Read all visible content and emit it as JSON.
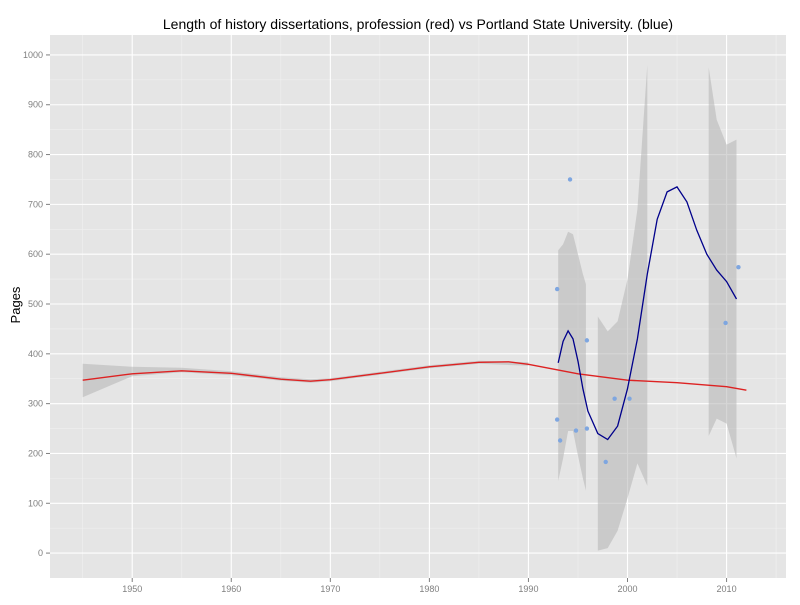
{
  "chart_data": {
    "type": "scatter",
    "title": "Length of history dissertations, profession (red) vs Portland State University. (blue)",
    "xlabel": "",
    "ylabel": "Pages",
    "xlim": [
      1941.7,
      2016.0
    ],
    "ylim": [
      -50,
      1040
    ],
    "x_ticks": [
      1950,
      1960,
      1970,
      1980,
      1990,
      2000,
      2010
    ],
    "y_ticks": [
      0,
      100,
      200,
      300,
      400,
      500,
      600,
      700,
      800,
      900,
      1000
    ],
    "grid": true,
    "background": "#e5e5e5",
    "points": [
      {
        "x": 1992.9,
        "y": 530
      },
      {
        "x": 1992.9,
        "y": 268
      },
      {
        "x": 1993.2,
        "y": 226
      },
      {
        "x": 1994.2,
        "y": 750
      },
      {
        "x": 1994.8,
        "y": 246
      },
      {
        "x": 1995.9,
        "y": 427
      },
      {
        "x": 1995.9,
        "y": 250
      },
      {
        "x": 1997.8,
        "y": 183
      },
      {
        "x": 1998.7,
        "y": 310
      },
      {
        "x": 2000.2,
        "y": 310
      },
      {
        "x": 2009.9,
        "y": 462
      },
      {
        "x": 2011.2,
        "y": 574
      }
    ],
    "series": [
      {
        "color": "#dd2222",
        "line": [
          {
            "x": 1945.0,
            "y": 347
          },
          {
            "x": 1950.0,
            "y": 360
          },
          {
            "x": 1955.0,
            "y": 366
          },
          {
            "x": 1960.0,
            "y": 361
          },
          {
            "x": 1965.0,
            "y": 349
          },
          {
            "x": 1968.0,
            "y": 345
          },
          {
            "x": 1970.0,
            "y": 348
          },
          {
            "x": 1975.0,
            "y": 361
          },
          {
            "x": 1980.0,
            "y": 374
          },
          {
            "x": 1985.0,
            "y": 383
          },
          {
            "x": 1988.0,
            "y": 384
          },
          {
            "x": 1990.0,
            "y": 379
          },
          {
            "x": 1995.0,
            "y": 360
          },
          {
            "x": 2000.0,
            "y": 347
          },
          {
            "x": 2005.0,
            "y": 342
          },
          {
            "x": 2010.0,
            "y": 334
          },
          {
            "x": 2012.0,
            "y": 327
          }
        ],
        "band": [
          {
            "x": 1945.0,
            "lo": 313,
            "hi": 380
          },
          {
            "x": 1950.0,
            "lo": 355,
            "hi": 374
          },
          {
            "x": 1955.0,
            "lo": 363,
            "hi": 372
          },
          {
            "x": 1960.0,
            "lo": 357,
            "hi": 365
          },
          {
            "x": 1965.0,
            "lo": 346,
            "hi": 353
          },
          {
            "x": 1968.0,
            "lo": 342,
            "hi": 349
          },
          {
            "x": 1970.0,
            "lo": 345,
            "hi": 351
          },
          {
            "x": 1975.0,
            "lo": 358,
            "hi": 364
          },
          {
            "x": 1980.0,
            "lo": 371,
            "hi": 377
          },
          {
            "x": 1985.0,
            "lo": 380,
            "hi": 386
          },
          {
            "x": 1990.0,
            "lo": 376,
            "hi": 383
          }
        ]
      },
      {
        "color": "#00008b",
        "segments": [
          [
            {
              "x": 1993.0,
              "y": 382
            },
            {
              "x": 1993.5,
              "y": 425
            },
            {
              "x": 1994.0,
              "y": 446
            },
            {
              "x": 1994.5,
              "y": 430
            },
            {
              "x": 1995.0,
              "y": 385
            },
            {
              "x": 1995.5,
              "y": 330
            },
            {
              "x": 1996.0,
              "y": 285
            },
            {
              "x": 1997.0,
              "y": 240
            },
            {
              "x": 1998.0,
              "y": 228
            },
            {
              "x": 1999.0,
              "y": 255
            },
            {
              "x": 2000.0,
              "y": 330
            },
            {
              "x": 2001.0,
              "y": 430
            },
            {
              "x": 2002.0,
              "y": 560
            },
            {
              "x": 2003.0,
              "y": 670
            },
            {
              "x": 2004.0,
              "y": 725
            },
            {
              "x": 2005.0,
              "y": 735
            },
            {
              "x": 2006.0,
              "y": 705
            },
            {
              "x": 2007.0,
              "y": 648
            },
            {
              "x": 2008.0,
              "y": 600
            },
            {
              "x": 2009.0,
              "y": 568
            },
            {
              "x": 2010.0,
              "y": 545
            },
            {
              "x": 2011.0,
              "y": 510
            }
          ]
        ],
        "bands": [
          [
            {
              "x": 1993.0,
              "lo": 145,
              "hi": 608
            },
            {
              "x": 1993.5,
              "lo": 190,
              "hi": 620
            },
            {
              "x": 1994.0,
              "lo": 245,
              "hi": 645
            },
            {
              "x": 1994.5,
              "lo": 245,
              "hi": 640
            },
            {
              "x": 1995.0,
              "lo": 195,
              "hi": 600
            },
            {
              "x": 1995.5,
              "lo": 150,
              "hi": 560
            },
            {
              "x": 1995.8,
              "lo": 125,
              "hi": 540
            }
          ],
          [
            {
              "x": 1997.0,
              "lo": 5,
              "hi": 475
            },
            {
              "x": 1998.0,
              "lo": 10,
              "hi": 445
            },
            {
              "x": 1999.0,
              "lo": 45,
              "hi": 465
            },
            {
              "x": 2000.0,
              "lo": 110,
              "hi": 550
            },
            {
              "x": 2001.0,
              "lo": 180,
              "hi": 690
            },
            {
              "x": 2002.0,
              "lo": 135,
              "hi": 980
            }
          ],
          [
            {
              "x": 2008.2,
              "lo": 235,
              "hi": 975
            },
            {
              "x": 2009.0,
              "lo": 270,
              "hi": 870
            },
            {
              "x": 2010.0,
              "lo": 260,
              "hi": 820
            },
            {
              "x": 2011.0,
              "lo": 190,
              "hi": 830
            }
          ]
        ]
      }
    ],
    "colors": {
      "panel": "#e5e5e5",
      "grid_major": "#ffffff",
      "grid_minor": "#f0f0f0",
      "band": "#b4b4b4",
      "points": "#7ea6e0",
      "tick_text": "#7f7f7f"
    }
  }
}
